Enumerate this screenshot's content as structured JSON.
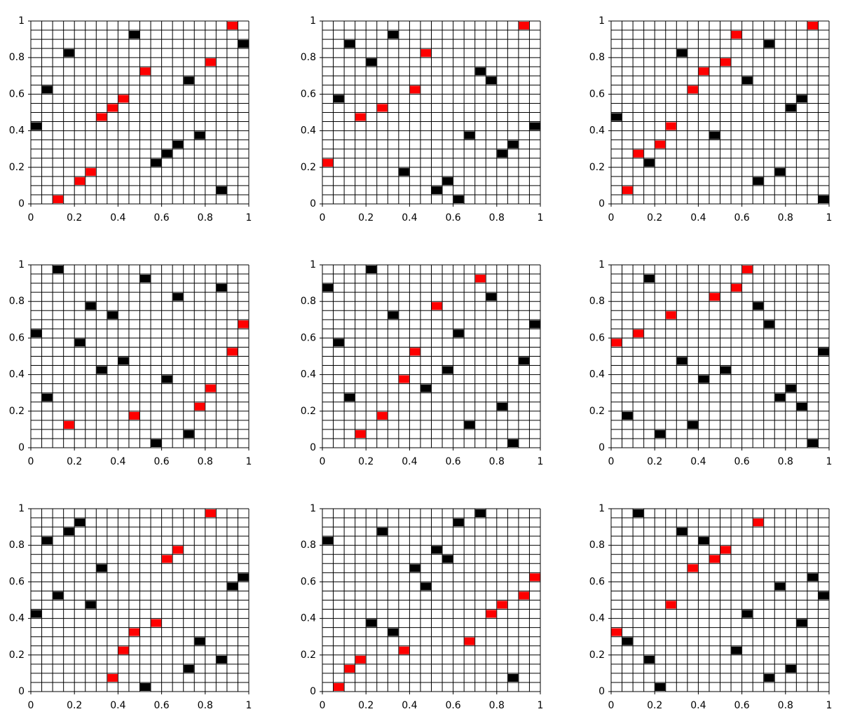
{
  "chart_data": [
    {
      "type": "scatter",
      "xlim": [
        0,
        1
      ],
      "ylim": [
        0,
        1
      ],
      "xticks": [
        0,
        0.2,
        0.4,
        0.6,
        0.8,
        1
      ],
      "yticks": [
        0,
        0.2,
        0.4,
        0.6,
        0.8,
        1
      ],
      "grid_step": 0.05,
      "series": [
        {
          "color": "#ff0000",
          "x": [
            0.125,
            0.225,
            0.275,
            0.325,
            0.375,
            0.425,
            0.525,
            0.825,
            0.925
          ],
          "values": [
            0.025,
            0.125,
            0.175,
            0.475,
            0.525,
            0.575,
            0.725,
            0.775,
            0.975
          ]
        },
        {
          "color": "#000000",
          "x": [
            0.025,
            0.075,
            0.175,
            0.475,
            0.575,
            0.625,
            0.675,
            0.725,
            0.775,
            0.875,
            0.975
          ],
          "values": [
            0.425,
            0.625,
            0.825,
            0.925,
            0.225,
            0.275,
            0.325,
            0.675,
            0.375,
            0.075,
            0.875
          ]
        }
      ]
    },
    {
      "type": "scatter",
      "xlim": [
        0,
        1
      ],
      "ylim": [
        0,
        1
      ],
      "xticks": [
        0,
        0.2,
        0.4,
        0.6,
        0.8,
        1
      ],
      "yticks": [
        0,
        0.2,
        0.4,
        0.6,
        0.8,
        1
      ],
      "grid_step": 0.05,
      "series": [
        {
          "color": "#ff0000",
          "x": [
            0.025,
            0.175,
            0.275,
            0.425,
            0.475,
            0.925
          ],
          "values": [
            0.225,
            0.475,
            0.525,
            0.625,
            0.825,
            0.975
          ]
        },
        {
          "color": "#000000",
          "x": [
            0.075,
            0.125,
            0.225,
            0.325,
            0.375,
            0.525,
            0.575,
            0.625,
            0.675,
            0.725,
            0.775,
            0.825,
            0.875,
            0.975
          ],
          "values": [
            0.575,
            0.875,
            0.775,
            0.925,
            0.175,
            0.075,
            0.125,
            0.025,
            0.375,
            0.725,
            0.675,
            0.275,
            0.325,
            0.425
          ]
        }
      ]
    },
    {
      "type": "scatter",
      "xlim": [
        0,
        1
      ],
      "ylim": [
        0,
        1
      ],
      "xticks": [
        0,
        0.2,
        0.4,
        0.6,
        0.8,
        1
      ],
      "yticks": [
        0,
        0.2,
        0.4,
        0.6,
        0.8,
        1
      ],
      "grid_step": 0.05,
      "series": [
        {
          "color": "#ff0000",
          "x": [
            0.075,
            0.125,
            0.225,
            0.275,
            0.375,
            0.425,
            0.525,
            0.575,
            0.925
          ],
          "values": [
            0.075,
            0.275,
            0.325,
            0.425,
            0.625,
            0.725,
            0.775,
            0.925,
            0.975
          ]
        },
        {
          "color": "#000000",
          "x": [
            0.025,
            0.175,
            0.325,
            0.475,
            0.625,
            0.675,
            0.725,
            0.775,
            0.825,
            0.875,
            0.975
          ],
          "values": [
            0.475,
            0.225,
            0.825,
            0.375,
            0.675,
            0.125,
            0.875,
            0.175,
            0.525,
            0.575,
            0.025
          ]
        }
      ]
    },
    {
      "type": "scatter",
      "xlim": [
        0,
        1
      ],
      "ylim": [
        0,
        1
      ],
      "xticks": [
        0,
        0.2,
        0.4,
        0.6,
        0.8,
        1
      ],
      "yticks": [
        0,
        0.2,
        0.4,
        0.6,
        0.8,
        1
      ],
      "grid_step": 0.05,
      "series": [
        {
          "color": "#ff0000",
          "x": [
            0.175,
            0.475,
            0.775,
            0.825,
            0.925,
            0.975
          ],
          "values": [
            0.125,
            0.175,
            0.225,
            0.325,
            0.525,
            0.675
          ]
        },
        {
          "color": "#000000",
          "x": [
            0.025,
            0.075,
            0.125,
            0.225,
            0.275,
            0.325,
            0.375,
            0.425,
            0.525,
            0.575,
            0.625,
            0.675,
            0.725,
            0.875
          ],
          "values": [
            0.625,
            0.275,
            0.975,
            0.575,
            0.775,
            0.425,
            0.725,
            0.475,
            0.925,
            0.025,
            0.375,
            0.825,
            0.075,
            0.875
          ]
        }
      ]
    },
    {
      "type": "scatter",
      "xlim": [
        0,
        1
      ],
      "ylim": [
        0,
        1
      ],
      "xticks": [
        0,
        0.2,
        0.4,
        0.6,
        0.8,
        1
      ],
      "yticks": [
        0,
        0.2,
        0.4,
        0.6,
        0.8,
        1
      ],
      "grid_step": 0.05,
      "series": [
        {
          "color": "#ff0000",
          "x": [
            0.175,
            0.275,
            0.375,
            0.425,
            0.525,
            0.725
          ],
          "values": [
            0.075,
            0.175,
            0.375,
            0.525,
            0.775,
            0.925
          ]
        },
        {
          "color": "#000000",
          "x": [
            0.025,
            0.075,
            0.125,
            0.225,
            0.325,
            0.475,
            0.575,
            0.625,
            0.675,
            0.775,
            0.825,
            0.875,
            0.925,
            0.975
          ],
          "values": [
            0.875,
            0.575,
            0.275,
            0.975,
            0.725,
            0.325,
            0.425,
            0.625,
            0.125,
            0.825,
            0.225,
            0.025,
            0.475,
            0.675
          ]
        }
      ]
    },
    {
      "type": "scatter",
      "xlim": [
        0,
        1
      ],
      "ylim": [
        0,
        1
      ],
      "xticks": [
        0,
        0.2,
        0.4,
        0.6,
        0.8,
        1
      ],
      "yticks": [
        0,
        0.2,
        0.4,
        0.6,
        0.8,
        1
      ],
      "grid_step": 0.05,
      "series": [
        {
          "color": "#ff0000",
          "x": [
            0.025,
            0.125,
            0.275,
            0.475,
            0.575,
            0.625
          ],
          "values": [
            0.575,
            0.625,
            0.725,
            0.825,
            0.875,
            0.975
          ]
        },
        {
          "color": "#000000",
          "x": [
            0.075,
            0.175,
            0.225,
            0.325,
            0.375,
            0.425,
            0.525,
            0.675,
            0.725,
            0.775,
            0.825,
            0.875,
            0.925,
            0.975
          ],
          "values": [
            0.175,
            0.925,
            0.075,
            0.475,
            0.125,
            0.375,
            0.425,
            0.775,
            0.675,
            0.275,
            0.325,
            0.225,
            0.025,
            0.525
          ]
        }
      ]
    },
    {
      "type": "scatter",
      "xlim": [
        0,
        1
      ],
      "ylim": [
        0,
        1
      ],
      "xticks": [
        0,
        0.2,
        0.4,
        0.6,
        0.8,
        1
      ],
      "yticks": [
        0,
        0.2,
        0.4,
        0.6,
        0.8,
        1
      ],
      "grid_step": 0.05,
      "series": [
        {
          "color": "#ff0000",
          "x": [
            0.375,
            0.425,
            0.475,
            0.575,
            0.625,
            0.675,
            0.825
          ],
          "values": [
            0.075,
            0.225,
            0.325,
            0.375,
            0.725,
            0.775,
            0.975
          ]
        },
        {
          "color": "#000000",
          "x": [
            0.025,
            0.075,
            0.125,
            0.175,
            0.225,
            0.275,
            0.325,
            0.525,
            0.725,
            0.775,
            0.875,
            0.925,
            0.975
          ],
          "values": [
            0.425,
            0.825,
            0.525,
            0.875,
            0.925,
            0.475,
            0.675,
            0.025,
            0.125,
            0.275,
            0.175,
            0.575,
            0.625
          ]
        }
      ]
    },
    {
      "type": "scatter",
      "xlim": [
        0,
        1
      ],
      "ylim": [
        0,
        1
      ],
      "xticks": [
        0,
        0.2,
        0.4,
        0.6,
        0.8,
        1
      ],
      "yticks": [
        0,
        0.2,
        0.4,
        0.6,
        0.8,
        1
      ],
      "grid_step": 0.05,
      "series": [
        {
          "color": "#ff0000",
          "x": [
            0.075,
            0.125,
            0.175,
            0.375,
            0.675,
            0.775,
            0.825,
            0.925,
            0.975
          ],
          "values": [
            0.025,
            0.125,
            0.175,
            0.225,
            0.275,
            0.425,
            0.475,
            0.525,
            0.625
          ]
        },
        {
          "color": "#000000",
          "x": [
            0.025,
            0.225,
            0.275,
            0.325,
            0.425,
            0.475,
            0.525,
            0.575,
            0.625,
            0.725,
            0.875
          ],
          "values": [
            0.825,
            0.375,
            0.875,
            0.325,
            0.675,
            0.575,
            0.775,
            0.725,
            0.925,
            0.975,
            0.075
          ]
        }
      ]
    },
    {
      "type": "scatter",
      "xlim": [
        0,
        1
      ],
      "ylim": [
        0,
        1
      ],
      "xticks": [
        0,
        0.2,
        0.4,
        0.6,
        0.8,
        1
      ],
      "yticks": [
        0,
        0.2,
        0.4,
        0.6,
        0.8,
        1
      ],
      "grid_step": 0.05,
      "series": [
        {
          "color": "#ff0000",
          "x": [
            0.025,
            0.275,
            0.375,
            0.475,
            0.525,
            0.675
          ],
          "values": [
            0.325,
            0.475,
            0.675,
            0.725,
            0.775,
            0.925
          ]
        },
        {
          "color": "#000000",
          "x": [
            0.075,
            0.125,
            0.175,
            0.225,
            0.325,
            0.425,
            0.575,
            0.625,
            0.725,
            0.775,
            0.825,
            0.875,
            0.925,
            0.975
          ],
          "values": [
            0.275,
            0.975,
            0.175,
            0.025,
            0.875,
            0.825,
            0.225,
            0.425,
            0.075,
            0.575,
            0.125,
            0.375,
            0.625,
            0.525
          ]
        }
      ]
    }
  ]
}
